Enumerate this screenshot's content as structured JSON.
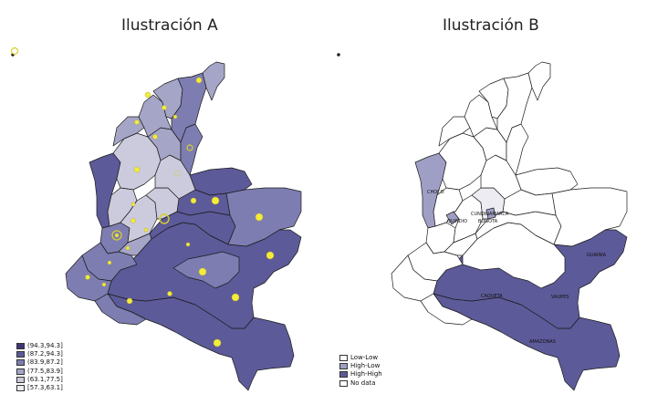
{
  "panel_a": {
    "title": "Ilustración A",
    "legend": [
      {
        "label": "(94.3,94.3]",
        "color": "#3e3775"
      },
      {
        "label": "(87.2,94.3]",
        "color": "#5d5a99"
      },
      {
        "label": "(83.9,87.2]",
        "color": "#7e7db1"
      },
      {
        "label": "(77.5,83.9]",
        "color": "#a5a5c7"
      },
      {
        "label": "(63.1,77.5]",
        "color": "#cbcbdd"
      },
      {
        "label": "[57.3,63.1]",
        "color": "#ececf2"
      }
    ],
    "marker_color": "#f4ec3a"
  },
  "panel_b": {
    "title": "Ilustración B",
    "legend": [
      {
        "label": "Low-Low",
        "color": "#ffffff"
      },
      {
        "label": "High-Low",
        "color": "#9f9fc6"
      },
      {
        "label": "High-High",
        "color": "#5d5a99"
      },
      {
        "label": "No data",
        "color": "#ffffff"
      }
    ],
    "region_labels": {
      "choco": "CHOCO",
      "quindio": "QUINDIO",
      "cundinamarca": "CUNDINAMARCA",
      "bogota": "BOGOTA",
      "guainia": "GUAINIA",
      "caqueta": "CAQUETA",
      "vaupes": "VAUPES",
      "amazonas": "AMAZONAS"
    }
  }
}
